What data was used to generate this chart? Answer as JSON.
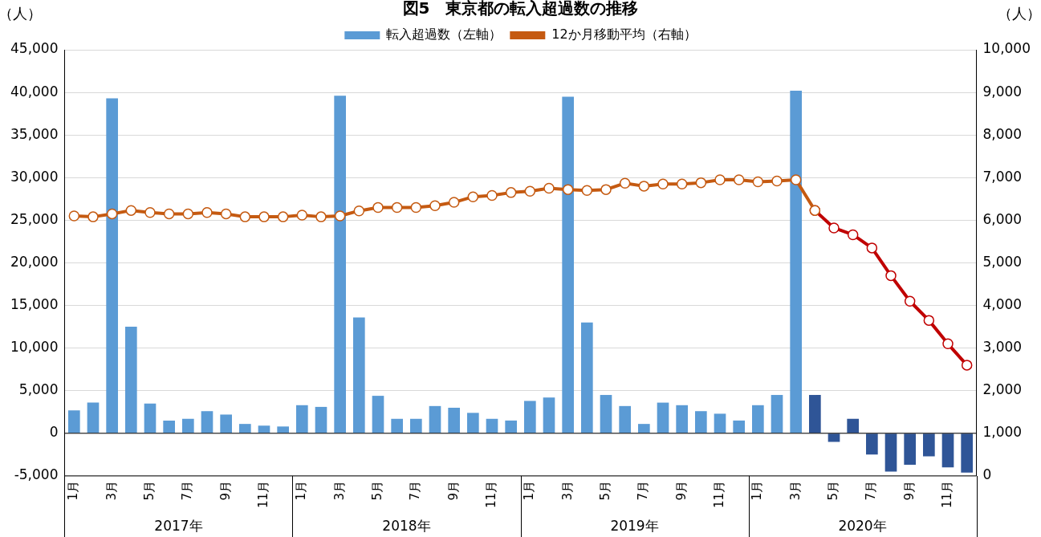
{
  "chart_data": {
    "type": "bar",
    "title": "図5　東京都の転入超過数の推移",
    "ylabel": "（人）",
    "y2label": "（人）",
    "categories": [
      "1月",
      null,
      "3月",
      null,
      "5月",
      null,
      "7月",
      null,
      "9月",
      null,
      "11月",
      null,
      "1月",
      null,
      "3月",
      null,
      "5月",
      null,
      "7月",
      null,
      "9月",
      null,
      "11月",
      null,
      "1月",
      null,
      "3月",
      null,
      "5月",
      null,
      "7月",
      null,
      "9月",
      null,
      "11月",
      null,
      "1月",
      null,
      "3月",
      null,
      "5月",
      null,
      "7月",
      null,
      "9月",
      null,
      "11月",
      null
    ],
    "annotations": [
      "2017年",
      "2018年",
      "2019年",
      "2020年"
    ],
    "series": [
      {
        "name": "転入超過数（左軸）",
        "color": "#5b9bd5",
        "colors": [
          "#5b9bd5",
          "#5b9bd5",
          "#5b9bd5",
          "#5b9bd5",
          "#5b9bd5",
          "#5b9bd5",
          "#5b9bd5",
          "#5b9bd5",
          "#5b9bd5",
          "#5b9bd5",
          "#5b9bd5",
          "#5b9bd5",
          "#5b9bd5",
          "#5b9bd5",
          "#5b9bd5",
          "#5b9bd5",
          "#5b9bd5",
          "#5b9bd5",
          "#5b9bd5",
          "#5b9bd5",
          "#5b9bd5",
          "#5b9bd5",
          "#5b9bd5",
          "#5b9bd5",
          "#5b9bd5",
          "#5b9bd5",
          "#5b9bd5",
          "#5b9bd5",
          "#5b9bd5",
          "#5b9bd5",
          "#5b9bd5",
          "#5b9bd5",
          "#5b9bd5",
          "#5b9bd5",
          "#5b9bd5",
          "#5b9bd5",
          "#5b9bd5",
          "#5b9bd5",
          "#5b9bd5",
          "#2f5597",
          "#2f5597",
          "#2f5597",
          "#2f5597",
          "#2f5597",
          "#2f5597",
          "#2f5597",
          "#2f5597",
          "#2f5597"
        ],
        "values": [
          2700,
          3600,
          39300,
          12500,
          3500,
          1500,
          1700,
          2600,
          2200,
          1100,
          900,
          800,
          3300,
          3100,
          39600,
          13600,
          4400,
          1700,
          1700,
          3200,
          3000,
          2400,
          1700,
          1500,
          3800,
          4200,
          39500,
          13000,
          4500,
          3200,
          1100,
          3600,
          3300,
          2600,
          2300,
          1500,
          3300,
          4500,
          40200,
          4500,
          -1000,
          1700,
          -2500,
          -4500,
          -3700,
          -2700,
          -4000,
          -4600
        ]
      },
      {
        "type": "line",
        "name": "12か月移動平均（右軸）",
        "axis": "y2",
        "color": "#c55a11",
        "values": [
          6100,
          6080,
          6150,
          6230,
          6180,
          6150,
          6150,
          6180,
          6150,
          6080,
          6080,
          6080,
          6120,
          6080,
          6100,
          6220,
          6300,
          6300,
          6300,
          6340,
          6420,
          6550,
          6580,
          6650,
          6680,
          6750,
          6720,
          6700,
          6720,
          6870,
          6800,
          6850,
          6850,
          6880,
          6950,
          6950,
          6900,
          6920,
          6950,
          6230,
          null,
          null,
          null,
          null,
          null,
          null,
          null,
          null
        ]
      },
      {
        "type": "line",
        "axis": "y2",
        "color": "#c00000",
        "values": [
          null,
          null,
          null,
          null,
          null,
          null,
          null,
          null,
          null,
          null,
          null,
          null,
          null,
          null,
          null,
          null,
          null,
          null,
          null,
          null,
          null,
          null,
          null,
          null,
          null,
          null,
          null,
          null,
          null,
          null,
          null,
          null,
          null,
          null,
          null,
          null,
          null,
          null,
          null,
          6230,
          5820,
          5660,
          5350,
          4700,
          4100,
          3650,
          3100,
          2600
        ]
      }
    ],
    "ylim": [
      -5000,
      45000
    ],
    "yticks": [
      {
        "value": -5000,
        "label": "-5,000"
      },
      0,
      {
        "value": 5000,
        "label": "5,000"
      },
      {
        "value": 10000,
        "label": "10,000"
      },
      {
        "value": 15000,
        "label": "15,000"
      },
      {
        "value": 20000,
        "label": "20,000"
      },
      {
        "value": 25000,
        "label": "25,000"
      },
      {
        "value": 30000,
        "label": "30,000"
      },
      {
        "value": 35000,
        "label": "35,000"
      },
      {
        "value": 40000,
        "label": "40,000"
      },
      {
        "value": 45000,
        "label": "45,000"
      }
    ],
    "y2lim": [
      0,
      10000
    ],
    "y2ticks": [
      0,
      {
        "value": 1000,
        "label": "1,000"
      },
      {
        "value": 2000,
        "label": "2,000"
      },
      {
        "value": 3000,
        "label": "3,000"
      },
      {
        "value": 4000,
        "label": "4,000"
      },
      {
        "value": 5000,
        "label": "5,000"
      },
      {
        "value": 6000,
        "label": "6,000"
      },
      {
        "value": 7000,
        "label": "7,000"
      },
      {
        "value": 8000,
        "label": "8,000"
      },
      {
        "value": 9000,
        "label": "9,000"
      },
      {
        "value": 10000,
        "label": "10,000"
      }
    ],
    "grid": "y",
    "legend": "top",
    "marker": "circle",
    "line_style": "solid"
  }
}
